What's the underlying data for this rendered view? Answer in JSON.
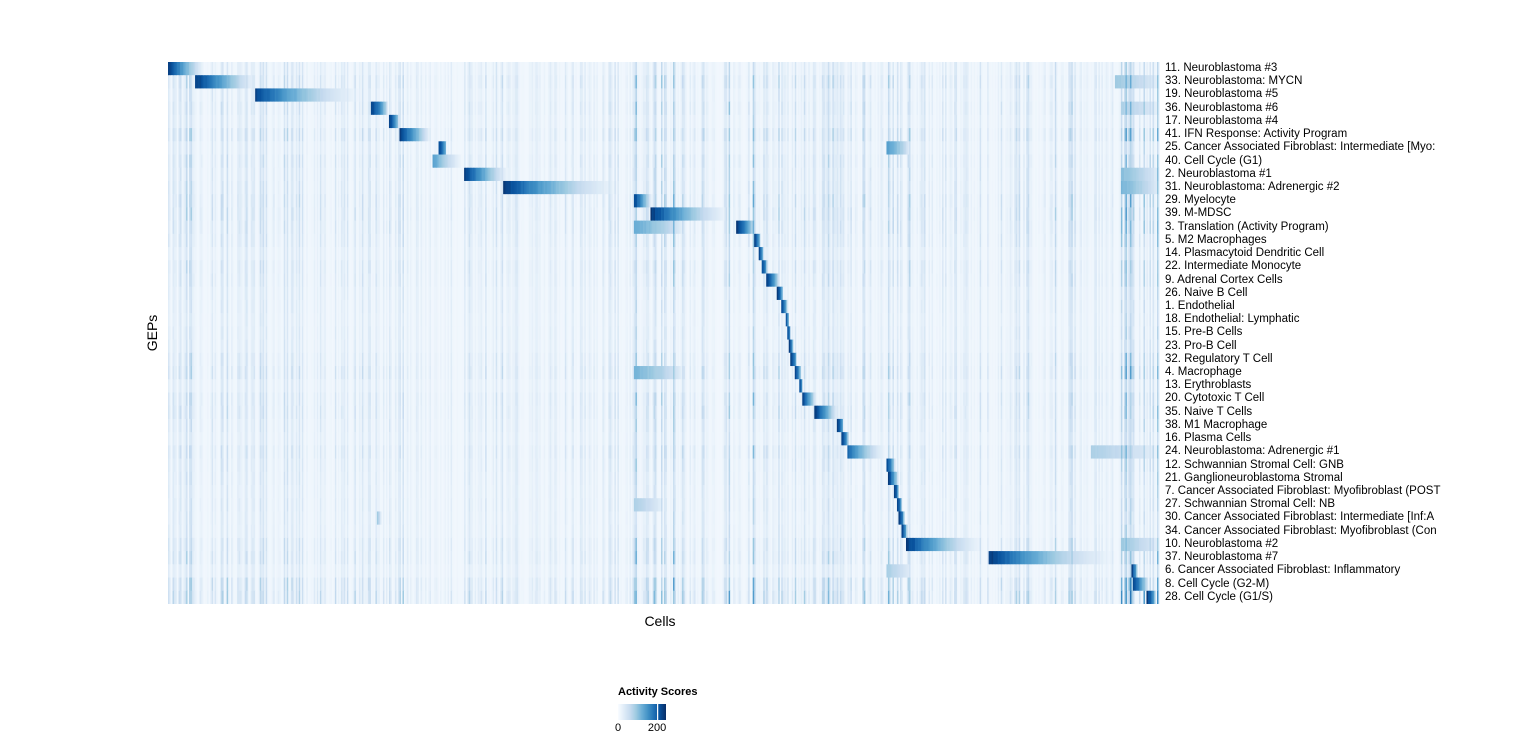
{
  "figure": {
    "background": "#ffffff",
    "text_color": "#000000"
  },
  "legend": {
    "title": "Activity Scores",
    "ticks": [
      {
        "value": 0,
        "label": "0"
      },
      {
        "value": 200,
        "label": "200"
      }
    ],
    "max_value": 246
  },
  "chart_data": {
    "type": "heatmap",
    "title": "",
    "xlabel": "Cells",
    "ylabel": "GEPs",
    "legend_title": "Activity Scores",
    "value_range": [
      0,
      246
    ],
    "legend_tick_values": [
      0,
      200
    ],
    "colormap": [
      "#f7fbff",
      "#deebf7",
      "#c6dbef",
      "#9ecae1",
      "#6baed6",
      "#4292c6",
      "#2171b5",
      "#08519c",
      "#08306b"
    ],
    "noise_bands": [
      [
        0.0,
        0.075,
        0.2
      ],
      [
        0.075,
        0.24,
        0.12
      ],
      [
        0.3,
        0.345,
        0.1
      ],
      [
        0.4,
        0.466,
        0.08
      ],
      [
        0.466,
        0.52,
        0.3
      ],
      [
        0.52,
        0.554,
        0.14
      ],
      [
        0.554,
        0.61,
        0.3
      ],
      [
        0.61,
        0.71,
        0.16
      ],
      [
        0.72,
        0.76,
        0.22
      ],
      [
        0.76,
        0.83,
        0.1
      ],
      [
        0.84,
        0.875,
        0.14
      ],
      [
        0.88,
        0.915,
        0.16
      ],
      [
        0.96,
        1.0,
        0.32
      ]
    ],
    "rows": [
      {
        "label": "11. Neuroblastoma #3",
        "block": [
          0.0,
          0.038
        ],
        "peak": 1.0,
        "pow": 1.2,
        "noise": 0.7
      },
      {
        "label": "33. Neuroblastoma: MYCN",
        "block": [
          0.027,
          0.089
        ],
        "peak": 1.0,
        "pow": 1.1,
        "noise": 1.2,
        "extra": [
          [
            0.955,
            1.0,
            0.35
          ]
        ]
      },
      {
        "label": "19. Neuroblastoma #5",
        "block": [
          0.088,
          0.21
        ],
        "peak": 0.95,
        "pow": 1.8,
        "noise": 0.8
      },
      {
        "label": "36. Neuroblastoma #6",
        "block": [
          0.204,
          0.222
        ],
        "peak": 1.0,
        "pow": 0.6,
        "noise": 1.1,
        "extra": [
          [
            0.96,
            1.0,
            0.3
          ]
        ]
      },
      {
        "label": "17. Neuroblastoma #4",
        "block": [
          0.222,
          0.233
        ],
        "peak": 1.0,
        "pow": 0.5,
        "noise": 0.7
      },
      {
        "label": "41. IFN Response: Activity Program",
        "block": [
          0.233,
          0.265
        ],
        "peak": 1.0,
        "pow": 1.0,
        "noise": 1.4
      },
      {
        "label": "25. Cancer Associated Fibroblast: Intermediate [Myo:",
        "block": [
          0.272,
          0.281
        ],
        "peak": 1.0,
        "pow": 0.4,
        "noise": 0.7,
        "extra": [
          [
            0.725,
            0.748,
            0.55
          ]
        ]
      },
      {
        "label": "40. Cell Cycle (G1)",
        "block": [
          0.267,
          0.3
        ],
        "peak": 0.55,
        "pow": 1.4,
        "noise": 1.1
      },
      {
        "label": "2. Neuroblastoma #1",
        "block": [
          0.299,
          0.346
        ],
        "peak": 1.0,
        "pow": 1.3,
        "noise": 0.9,
        "extra": [
          [
            0.96,
            1.0,
            0.4
          ]
        ]
      },
      {
        "label": "31. Neuroblastoma: Adrenergic #2",
        "block": [
          0.338,
          0.469
        ],
        "peak": 1.0,
        "pow": 1.7,
        "noise": 1.0,
        "extra": [
          [
            0.96,
            1.0,
            0.45
          ]
        ]
      },
      {
        "label": "29. Myelocyte",
        "block": [
          0.469,
          0.488
        ],
        "peak": 1.0,
        "pow": 0.9,
        "noise": 1.3
      },
      {
        "label": "39. M-MDSC",
        "block": [
          0.487,
          0.574
        ],
        "peak": 1.0,
        "pow": 1.6,
        "noise": 1.3
      },
      {
        "label": "3. Translation (Activity Program)",
        "block": [
          0.573,
          0.592
        ],
        "peak": 1.0,
        "pow": 0.7,
        "noise": 1.2,
        "extra": [
          [
            0.469,
            0.52,
            0.5
          ]
        ]
      },
      {
        "label": "5. M2 Macrophages",
        "block": [
          0.591,
          0.597
        ],
        "peak": 1.0,
        "pow": 0.4,
        "noise": 1.0
      },
      {
        "label": "14. Plasmacytoid Dendritic Cell",
        "block": [
          0.595,
          0.6
        ],
        "peak": 1.0,
        "pow": 0.35,
        "noise": 0.6
      },
      {
        "label": "22. Intermediate Monocyte",
        "block": [
          0.598,
          0.604
        ],
        "peak": 1.0,
        "pow": 0.4,
        "noise": 1.0
      },
      {
        "label": "9. Adrenal Cortex Cells",
        "block": [
          0.603,
          0.616
        ],
        "peak": 1.0,
        "pow": 0.6,
        "noise": 0.9
      },
      {
        "label": "26. Naive B Cell",
        "block": [
          0.614,
          0.62
        ],
        "peak": 1.0,
        "pow": 0.4,
        "noise": 0.6
      },
      {
        "label": "1. Endothelial",
        "block": [
          0.618,
          0.624
        ],
        "peak": 1.0,
        "pow": 0.4,
        "noise": 0.6
      },
      {
        "label": "18. Endothelial: Lymphatic",
        "block": [
          0.622,
          0.626
        ],
        "peak": 1.0,
        "pow": 0.35,
        "noise": 0.5
      },
      {
        "label": "15. Pre-B Cells",
        "block": [
          0.624,
          0.628
        ],
        "peak": 1.0,
        "pow": 0.35,
        "noise": 0.6
      },
      {
        "label": "23. Pro-B Cell",
        "block": [
          0.626,
          0.63
        ],
        "peak": 1.0,
        "pow": 0.35,
        "noise": 0.6
      },
      {
        "label": "32. Regulatory T Cell",
        "block": [
          0.628,
          0.634
        ],
        "peak": 1.0,
        "pow": 0.4,
        "noise": 1.0
      },
      {
        "label": "4. Macrophage",
        "block": [
          0.632,
          0.638
        ],
        "peak": 1.0,
        "pow": 0.45,
        "noise": 1.3,
        "extra": [
          [
            0.469,
            0.52,
            0.45
          ]
        ]
      },
      {
        "label": "13. Erythroblasts",
        "block": [
          0.636,
          0.64
        ],
        "peak": 1.0,
        "pow": 0.35,
        "noise": 0.6
      },
      {
        "label": "20. Cytotoxic T Cell",
        "block": [
          0.639,
          0.653
        ],
        "peak": 1.0,
        "pow": 0.8,
        "noise": 1.1
      },
      {
        "label": "35. Naive T Cells",
        "block": [
          0.652,
          0.676
        ],
        "peak": 1.0,
        "pow": 1.0,
        "noise": 1.1
      },
      {
        "label": "38. M1 Macrophage",
        "block": [
          0.675,
          0.681
        ],
        "peak": 1.0,
        "pow": 0.4,
        "noise": 0.8
      },
      {
        "label": "16. Plasma Cells",
        "block": [
          0.679,
          0.686
        ],
        "peak": 1.0,
        "pow": 0.45,
        "noise": 0.6
      },
      {
        "label": "24. Neuroblastoma: Adrenergic #1",
        "block": [
          0.685,
          0.729
        ],
        "peak": 0.8,
        "pow": 1.6,
        "noise": 1.1,
        "extra": [
          [
            0.93,
            1.0,
            0.3
          ]
        ]
      },
      {
        "label": "12. Schwannian Stromal Cell: GNB",
        "block": [
          0.724,
          0.733
        ],
        "peak": 1.0,
        "pow": 0.6,
        "noise": 0.8
      },
      {
        "label": "21. Ganglioneuroblastoma Stromal",
        "block": [
          0.726,
          0.737
        ],
        "peak": 1.0,
        "pow": 0.8,
        "noise": 0.7
      },
      {
        "label": "7. Cancer Associated Fibroblast: Myofibroblast (POST",
        "block": [
          0.732,
          0.737
        ],
        "peak": 1.0,
        "pow": 0.4,
        "noise": 0.6
      },
      {
        "label": "27. Schwannian Stromal Cell: NB",
        "block": [
          0.735,
          0.74
        ],
        "peak": 1.0,
        "pow": 0.4,
        "noise": 0.7,
        "extra": [
          [
            0.469,
            0.5,
            0.3
          ]
        ]
      },
      {
        "label": "30. Cancer Associated Fibroblast: Intermediate [Inf:A",
        "block": [
          0.737,
          0.742
        ],
        "peak": 1.0,
        "pow": 0.35,
        "noise": 0.6,
        "extra": [
          [
            0.21,
            0.215,
            0.4
          ]
        ]
      },
      {
        "label": "34. Cancer Associated Fibroblast: Myofibroblast (Con",
        "block": [
          0.739,
          0.745
        ],
        "peak": 1.0,
        "pow": 0.4,
        "noise": 0.6
      },
      {
        "label": "10. Neuroblastoma #2",
        "block": [
          0.744,
          0.832
        ],
        "peak": 1.0,
        "pow": 1.7,
        "noise": 1.1,
        "extra": [
          [
            0.96,
            1.0,
            0.35
          ]
        ]
      },
      {
        "label": "37. Neuroblastoma #7",
        "block": [
          0.827,
          0.973
        ],
        "peak": 1.0,
        "pow": 1.8,
        "noise": 1.2
      },
      {
        "label": "6. Cancer Associated Fibroblast: Inflammatory",
        "block": [
          0.971,
          0.977
        ],
        "peak": 1.0,
        "pow": 0.4,
        "noise": 0.6,
        "extra": [
          [
            0.725,
            0.75,
            0.3
          ]
        ]
      },
      {
        "label": "8. Cell Cycle (G2-M)",
        "block": [
          0.972,
          0.989
        ],
        "peak": 1.0,
        "pow": 0.8,
        "noise": 1.6
      },
      {
        "label": "28. Cell Cycle (G1/S)",
        "block": [
          0.987,
          0.996
        ],
        "peak": 1.0,
        "pow": 0.5,
        "noise": 1.9
      }
    ]
  }
}
